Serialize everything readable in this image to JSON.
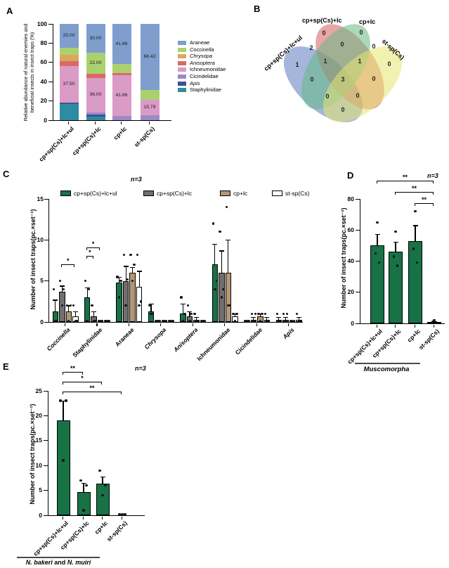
{
  "panel_labels": {
    "a": "A",
    "b": "B",
    "c": "C",
    "d": "D",
    "e": "E"
  },
  "treatments": [
    "cp+sp(Cs)+lc+ul",
    "cp+sp(Cs)+lc",
    "cp+lc",
    "st-sp(Cs)"
  ],
  "chart_data": [
    {
      "id": "A",
      "type": "bar",
      "subtype": "stacked-percent",
      "ylabel_lines": [
        "Relative abundance of natural enemies and",
        "beneficial insects in insect traps (%)"
      ],
      "ylim": [
        0,
        100
      ],
      "yticks": [
        0,
        20,
        40,
        60,
        80,
        100
      ],
      "categories": [
        "cp+sp(Cs)+lc+ul",
        "cp+sp(Cs)+lc",
        "cp+lc",
        "st-sp(Cs)"
      ],
      "series": [
        {
          "name": "Staphylinidae",
          "italic": false,
          "color": "#2E8BA4",
          "values": [
            17.0,
            4.0,
            0,
            0
          ]
        },
        {
          "name": "Apis",
          "italic": true,
          "color": "#41528F",
          "values": [
            1.5,
            2.0,
            0,
            0
          ]
        },
        {
          "name": "Cicindelidae",
          "italic": false,
          "color": "#9B8AC6",
          "values": [
            0,
            2.0,
            4.65,
            5.26
          ]
        },
        {
          "name": "Ichneumonidae",
          "italic": false,
          "color": "#DB9BC7",
          "values": [
            37.5,
            36.0,
            41.86,
            15.79
          ]
        },
        {
          "name": "Anisoptera",
          "italic": true,
          "color": "#D96B65",
          "values": [
            5.0,
            4.0,
            2.33,
            0
          ]
        },
        {
          "name": "Chrysopa",
          "italic": true,
          "color": "#DBA75F",
          "values": [
            7.0,
            0,
            0,
            0
          ]
        },
        {
          "name": "Coccinella",
          "italic": true,
          "color": "#ABD16E",
          "values": [
            7.0,
            22.0,
            9.3,
            10.53
          ]
        },
        {
          "name": "Araneae",
          "italic": false,
          "color": "#7F9ECE",
          "values": [
            25.0,
            30.0,
            41.86,
            68.42
          ]
        }
      ],
      "legend_order": [
        "Araneae",
        "Coccinella",
        "Chrysopa",
        "Anisoptera",
        "Ichneumonidae",
        "Cicindelidae",
        "Apis",
        "Staphylinidae"
      ],
      "bar_value_labels": [
        {
          "bar": 0,
          "series": "Araneae",
          "text": "25.00"
        },
        {
          "bar": 0,
          "series": "Ichneumonidae",
          "text": "37.50"
        },
        {
          "bar": 1,
          "series": "Araneae",
          "text": "30.00"
        },
        {
          "bar": 1,
          "series": "Coccinella",
          "text": "22.00"
        },
        {
          "bar": 1,
          "series": "Ichneumonidae",
          "text": "36.00"
        },
        {
          "bar": 2,
          "series": "Araneae",
          "text": "41.86"
        },
        {
          "bar": 2,
          "series": "Ichneumonidae",
          "text": "41.86"
        },
        {
          "bar": 3,
          "series": "Araneae",
          "text": "68.42"
        },
        {
          "bar": 3,
          "series": "Ichneumonidae",
          "text": "15.79"
        }
      ]
    },
    {
      "id": "B",
      "type": "venn",
      "sets": [
        {
          "key": "A",
          "name": "cp+sp(Cs)+lc+ul",
          "color": "#5B79BE"
        },
        {
          "key": "B",
          "name": "cp+sp(Cs)+lc",
          "color": "#D55C5C"
        },
        {
          "key": "C",
          "name": "cp+lc",
          "color": "#66B884"
        },
        {
          "key": "D",
          "name": "st-sp(Cs)",
          "color": "#E6E670"
        }
      ],
      "region_counts": {
        "A": 1,
        "B": 0,
        "C": 0,
        "D": 0,
        "AB": 2,
        "AC": 0,
        "AD": 0,
        "BC": 0,
        "BD": 0,
        "CD": 0,
        "ABC": 1,
        "ABD": 0,
        "ACD": 0,
        "BCD": 1,
        "ABCD": 3
      }
    },
    {
      "id": "C",
      "type": "bar",
      "subtype": "grouped-mean-sem-points",
      "title": "n=3",
      "ylabel": "Number of insect traps(pc.×set⁻¹)",
      "ylim": [
        0,
        15
      ],
      "yticks": [
        0,
        5,
        10,
        15
      ],
      "categories": [
        {
          "label": "Coccinella",
          "italic": true
        },
        {
          "label": "Staphylinidae",
          "italic": false
        },
        {
          "label": "Araneae",
          "italic": false
        },
        {
          "label": "Chrysopa",
          "italic": true
        },
        {
          "label": "Anisoptera",
          "italic": true
        },
        {
          "label": "Ichneumonidae",
          "italic": false
        },
        {
          "label": "Cicindelidae",
          "italic": false
        },
        {
          "label": "Apis",
          "italic": true
        }
      ],
      "series": [
        {
          "name": "cp+sp(Cs)+lc+ul",
          "color": "#177245",
          "means": [
            1.3,
            3.0,
            4.8,
            1.3,
            1.0,
            7.0,
            0,
            0.3
          ],
          "sem": [
            1.4,
            1.2,
            0.7,
            0.9,
            1.2,
            2.5,
            0,
            0.3
          ],
          "points": [
            [
              4,
              0.1,
              0.1
            ],
            [
              5,
              4,
              0.1
            ],
            [
              5.5,
              5,
              3
            ],
            [
              2,
              1,
              1
            ],
            [
              3,
              1,
              0.1
            ],
            [
              12,
              5,
              4
            ],
            [
              0.1,
              0.1,
              0.1
            ],
            [
              1,
              0.1,
              0.1
            ]
          ]
        },
        {
          "name": "cp+sp(Cs)+lc",
          "color": "#6F6F6F",
          "means": [
            3.7,
            0.7,
            5.0,
            0,
            0.7,
            6.0,
            0.3,
            0.3
          ],
          "sem": [
            0.7,
            0.6,
            1.8,
            0,
            0.6,
            2.7,
            0.3,
            0.3
          ],
          "points": [
            [
              5,
              4,
              2
            ],
            [
              2,
              0.1,
              0.1
            ],
            [
              8.2,
              5.2,
              2
            ],
            [
              0.1,
              0.1,
              0.1
            ],
            [
              2,
              1,
              0.1
            ],
            [
              11,
              4,
              3
            ],
            [
              1,
              1,
              0.1
            ],
            [
              1,
              1,
              0.1
            ]
          ]
        },
        {
          "name": "cp+lc",
          "color": "#B49674",
          "means": [
            1.3,
            0,
            6.0,
            0,
            0.3,
            6.0,
            0.7,
            0
          ],
          "sem": [
            0.7,
            0,
            0.7,
            0,
            0.3,
            4.0,
            0.3,
            0
          ],
          "points": [
            [
              2,
              2,
              0.1
            ],
            [
              0.1,
              0.1,
              0.1
            ],
            [
              8.2,
              7,
              5
            ],
            [
              0.1,
              0.1,
              0.1
            ],
            [
              1,
              0.1,
              0.1
            ],
            [
              14,
              2,
              2
            ],
            [
              1,
              1,
              0.1
            ],
            [
              0.1,
              0.1,
              0.1
            ]
          ]
        },
        {
          "name": "st-sp(Cs)",
          "color": "#FFFFFF",
          "means": [
            0.7,
            0,
            4.3,
            0,
            0,
            0.7,
            0.3,
            0.3
          ],
          "sem": [
            0.6,
            0,
            1.9,
            0,
            0,
            0.3,
            0.3,
            0.3
          ],
          "points": [
            [
              2,
              0.1,
              0.1
            ],
            [
              0.1,
              0.1,
              0.1
            ],
            [
              8.2,
              2.5,
              2
            ],
            [
              0.1,
              0.1,
              0.1
            ],
            [
              0.1,
              0.1,
              0.1
            ],
            [
              1,
              1,
              0.1
            ],
            [
              1,
              0.1,
              0.1
            ],
            [
              1,
              0.1,
              0.1
            ]
          ]
        }
      ],
      "significance": [
        {
          "category": 0,
          "bars": [
            1,
            3
          ],
          "label": "*",
          "y": 7.0
        },
        {
          "category": 1,
          "bars": [
            0,
            1
          ],
          "label": "*",
          "y": 8.1
        },
        {
          "category": 1,
          "bars": [
            0,
            2
          ],
          "label": "*",
          "y": 9.1
        }
      ]
    },
    {
      "id": "D",
      "type": "bar",
      "subtype": "mean-sem-points",
      "title": "n=3",
      "ylabel": "Number of insect traps(pc.×set⁻¹)",
      "ylim": [
        0,
        80
      ],
      "yticks": [
        0,
        20,
        40,
        60,
        80
      ],
      "categories": [
        "cp+sp(Cs)+lc+ul",
        "cp+sp(Cs)+lc",
        "cp+lc",
        "st-sp(Cs)"
      ],
      "bar_color": "#177245",
      "means": [
        50,
        46,
        53,
        0.7
      ],
      "sem": [
        7.5,
        6.5,
        10,
        0.8
      ],
      "points": [
        [
          65,
          45,
          39
        ],
        [
          59,
          43,
          37
        ],
        [
          72,
          48,
          39
        ],
        [
          2,
          1,
          0.3
        ]
      ],
      "significance": [
        {
          "bars": [
            0,
            3
          ],
          "label": "**"
        },
        {
          "bars": [
            1,
            3
          ],
          "label": "**"
        },
        {
          "bars": [
            2,
            3
          ],
          "label": "**"
        }
      ],
      "group_label": "Muscomorpha"
    },
    {
      "id": "E",
      "type": "bar",
      "subtype": "mean-sem-points",
      "title": "n=3",
      "ylabel": "Number of insect traps(pc.×set⁻¹)",
      "ylim": [
        0,
        25
      ],
      "yticks": [
        0,
        5,
        10,
        15,
        20,
        25
      ],
      "categories": [
        "cp+sp(Cs)+lc+ul",
        "cp+sp(Cs)+lc",
        "cp+lc",
        "st-sp(Cs)"
      ],
      "bar_color": "#177245",
      "means": [
        19,
        4.7,
        6.3,
        0
      ],
      "sem": [
        4,
        1.8,
        1.5,
        0
      ],
      "points": [
        [
          23,
          23,
          11
        ],
        [
          7,
          6,
          1
        ],
        [
          9,
          6,
          4
        ],
        [
          0.15,
          0.15,
          0.15
        ]
      ],
      "significance": [
        {
          "bars": [
            0,
            1
          ],
          "label": "**"
        },
        {
          "bars": [
            0,
            2
          ],
          "label": "*"
        },
        {
          "bars": [
            0,
            3
          ],
          "label": "**"
        }
      ],
      "group_label_parts": [
        {
          "text": "N. bakeri",
          "italic": true
        },
        {
          "text": " and ",
          "italic": false
        },
        {
          "text": "N. muiri",
          "italic": true
        }
      ]
    }
  ]
}
